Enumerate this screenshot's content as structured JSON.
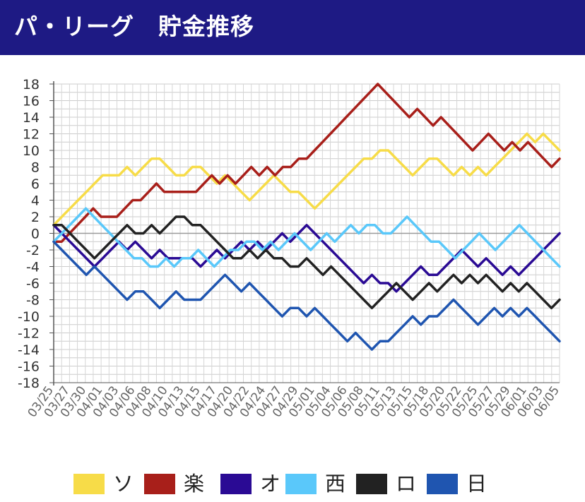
{
  "header": {
    "title": "パ・リーグ　貯金推移"
  },
  "chart_data": {
    "type": "line",
    "title": "パ・リーグ　貯金推移",
    "xlabel": "",
    "ylabel": "",
    "ylim": [
      -18,
      18
    ],
    "yticks": [
      18,
      16,
      14,
      12,
      10,
      8,
      6,
      4,
      2,
      0,
      -2,
      -4,
      -6,
      -8,
      -10,
      -12,
      -14,
      -16,
      -18
    ],
    "x_tick_labels": [
      "03/25",
      "03/27",
      "03/30",
      "04/01",
      "04/03",
      "04/06",
      "04/08",
      "04/10",
      "04/13",
      "04/15",
      "04/17",
      "04/20",
      "04/22",
      "04/24",
      "04/27",
      "04/29",
      "05/01",
      "05/04",
      "05/06",
      "05/08",
      "05/11",
      "05/13",
      "05/15",
      "05/18",
      "05/20",
      "05/22",
      "05/25",
      "05/27",
      "05/29",
      "06/01",
      "06/03",
      "06/05"
    ],
    "grid": true,
    "legend_position": "bottom",
    "series": [
      {
        "name": "ソ",
        "color": "#f7dc48",
        "values": [
          1,
          2,
          3,
          4,
          5,
          6,
          7,
          7,
          7,
          8,
          7,
          8,
          9,
          9,
          8,
          7,
          7,
          8,
          8,
          7,
          6,
          7,
          6,
          5,
          4,
          5,
          6,
          7,
          6,
          5,
          5,
          4,
          3,
          4,
          5,
          6,
          7,
          8,
          9,
          9,
          10,
          10,
          9,
          8,
          7,
          8,
          9,
          9,
          8,
          7,
          8,
          7,
          8,
          7,
          8,
          9,
          10,
          11,
          12,
          11,
          12,
          11,
          10
        ]
      },
      {
        "name": "楽",
        "color": "#a81f1a",
        "values": [
          -1,
          -1,
          0,
          1,
          2,
          3,
          2,
          2,
          2,
          3,
          4,
          4,
          5,
          6,
          5,
          5,
          5,
          5,
          5,
          6,
          7,
          6,
          7,
          6,
          7,
          8,
          7,
          8,
          7,
          8,
          8,
          9,
          9,
          10,
          11,
          12,
          13,
          14,
          15,
          16,
          17,
          18,
          17,
          16,
          15,
          14,
          15,
          14,
          13,
          14,
          13,
          12,
          11,
          10,
          11,
          12,
          11,
          10,
          11,
          10,
          11,
          10,
          9,
          8,
          9
        ]
      },
      {
        "name": "オ",
        "color": "#2a0a94",
        "values": [
          1,
          0,
          -1,
          -2,
          -3,
          -4,
          -3,
          -2,
          -1,
          -2,
          -1,
          -2,
          -3,
          -2,
          -3,
          -3,
          -3,
          -3,
          -4,
          -3,
          -2,
          -3,
          -2,
          -1,
          -2,
          -1,
          -2,
          -1,
          0,
          -1,
          0,
          1,
          0,
          -1,
          -2,
          -3,
          -4,
          -5,
          -6,
          -5,
          -6,
          -6,
          -7,
          -6,
          -5,
          -4,
          -5,
          -5,
          -4,
          -3,
          -2,
          -3,
          -4,
          -3,
          -4,
          -5,
          -4,
          -5,
          -4,
          -3,
          -2,
          -1,
          0
        ]
      },
      {
        "name": "西",
        "color": "#5ac8fa",
        "values": [
          -1,
          0,
          1,
          2,
          3,
          2,
          1,
          0,
          -1,
          -2,
          -3,
          -3,
          -4,
          -4,
          -3,
          -4,
          -3,
          -3,
          -2,
          -3,
          -4,
          -3,
          -2,
          -2,
          -1,
          -1,
          -2,
          -1,
          -2,
          -1,
          0,
          -1,
          -2,
          -1,
          0,
          -1,
          0,
          1,
          0,
          1,
          1,
          0,
          0,
          1,
          2,
          1,
          0,
          -1,
          -1,
          -2,
          -3,
          -2,
          -1,
          0,
          -1,
          -2,
          -1,
          0,
          1,
          0,
          -1,
          -2,
          -3,
          -4
        ]
      },
      {
        "name": "ロ",
        "color": "#222222",
        "values": [
          1,
          1,
          0,
          -1,
          -2,
          -3,
          -2,
          -1,
          0,
          1,
          0,
          0,
          1,
          0,
          1,
          2,
          2,
          1,
          1,
          0,
          -1,
          -2,
          -3,
          -3,
          -2,
          -3,
          -2,
          -3,
          -3,
          -4,
          -4,
          -3,
          -4,
          -5,
          -4,
          -5,
          -6,
          -7,
          -8,
          -9,
          -8,
          -7,
          -6,
          -7,
          -8,
          -7,
          -6,
          -7,
          -6,
          -5,
          -6,
          -5,
          -6,
          -5,
          -6,
          -7,
          -6,
          -7,
          -6,
          -7,
          -8,
          -9,
          -8
        ]
      },
      {
        "name": "日",
        "color": "#1f55b0",
        "values": [
          -1,
          -2,
          -3,
          -4,
          -5,
          -4,
          -5,
          -6,
          -7,
          -8,
          -7,
          -7,
          -8,
          -9,
          -8,
          -7,
          -8,
          -8,
          -8,
          -7,
          -6,
          -5,
          -6,
          -7,
          -6,
          -7,
          -8,
          -9,
          -10,
          -9,
          -9,
          -10,
          -9,
          -10,
          -11,
          -12,
          -13,
          -12,
          -13,
          -14,
          -13,
          -13,
          -12,
          -11,
          -10,
          -11,
          -10,
          -10,
          -9,
          -8,
          -9,
          -10,
          -11,
          -10,
          -9,
          -10,
          -9,
          -10,
          -9,
          -10,
          -11,
          -12,
          -13
        ]
      }
    ]
  }
}
